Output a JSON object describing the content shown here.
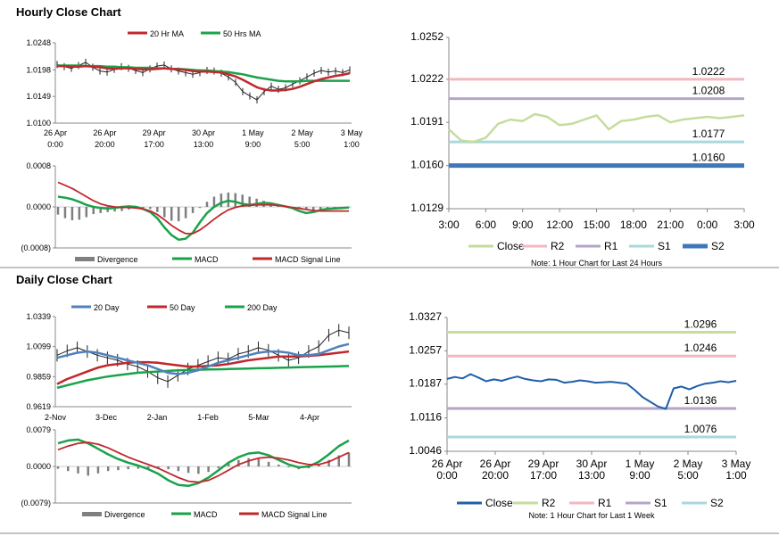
{
  "sections": {
    "hourly_title": "Hourly Close Chart",
    "daily_title": "Daily Close Chart"
  },
  "colors": {
    "ma20": "#c0282d",
    "ma50": "#1aa24a",
    "ma200": "#1aa24a",
    "ma20_daily": "#4f81bd",
    "price": "#222222",
    "divergence": "#7f7f7f",
    "macd": "#1aa24a",
    "signal": "#c0282d",
    "close": "#c5dd9c",
    "r2": "#f2b8bf",
    "r1": "#b3a5c8",
    "s1": "#a9d8dc",
    "s2": "#3f78b8",
    "close_daily": "#1f5fa8",
    "r2_daily": "#c5dd9c",
    "r1_daily": "#f2b8bf",
    "s1_daily": "#b3a5c8",
    "s2_daily": "#a9d8dc",
    "divider": "#888888"
  },
  "chart_data": [
    {
      "id": "hourly_price",
      "type": "line",
      "legend": [
        "20 Hr MA",
        "50 Hrs MA"
      ],
      "ylim": [
        1.01,
        1.0248
      ],
      "y_ticks": [
        "1.0248",
        "1.0198",
        "1.0149",
        "1.0100"
      ],
      "x_ticks": [
        [
          "26 Apr",
          "0:00"
        ],
        [
          "26 Apr",
          "20:00"
        ],
        [
          "29 Apr",
          "17:00"
        ],
        [
          "30 Apr",
          "13:00"
        ],
        [
          "1 May",
          "9:00"
        ],
        [
          "2 May",
          "5:00"
        ],
        [
          "3 May",
          "1:00"
        ]
      ],
      "series": [
        {
          "name": "Price",
          "values": [
            1.0208,
            1.0204,
            1.0201,
            1.0206,
            1.0212,
            1.0203,
            1.0196,
            1.0194,
            1.0199,
            1.0204,
            1.0201,
            1.0197,
            1.0193,
            1.02,
            1.0205,
            1.0207,
            1.02,
            1.0196,
            1.0193,
            1.019,
            1.0193,
            1.0197,
            1.0196,
            1.0192,
            1.0185,
            1.0175,
            1.0158,
            1.015,
            1.0143,
            1.0158,
            1.0168,
            1.0162,
            1.0165,
            1.0172,
            1.0178,
            1.0185,
            1.0192,
            1.0197,
            1.0194,
            1.0196,
            1.0193,
            1.0198
          ]
        },
        {
          "name": "20 Hr MA",
          "values": [
            1.0205,
            1.0205,
            1.0204,
            1.0204,
            1.0205,
            1.0204,
            1.0203,
            1.0201,
            1.02,
            1.0201,
            1.0201,
            1.02,
            1.0199,
            1.0199,
            1.02,
            1.0201,
            1.02,
            1.0199,
            1.0198,
            1.0196,
            1.0195,
            1.0195,
            1.0194,
            1.0193,
            1.019,
            1.0186,
            1.018,
            1.0173,
            1.0166,
            1.0162,
            1.016,
            1.016,
            1.0161,
            1.0163,
            1.0167,
            1.0172,
            1.0177,
            1.0181,
            1.0184,
            1.0187,
            1.0189,
            1.0192
          ]
        },
        {
          "name": "50 Hrs MA",
          "values": [
            1.0206,
            1.0206,
            1.0206,
            1.0206,
            1.0205,
            1.0205,
            1.0205,
            1.0204,
            1.0204,
            1.0203,
            1.0203,
            1.0202,
            1.0202,
            1.0202,
            1.0201,
            1.0201,
            1.02,
            1.02,
            1.0199,
            1.0198,
            1.0197,
            1.0197,
            1.0196,
            1.0195,
            1.0194,
            1.0192,
            1.019,
            1.0187,
            1.0184,
            1.0182,
            1.018,
            1.0178,
            1.0177,
            1.0177,
            1.0177,
            1.0178,
            1.0178,
            1.0178,
            1.0178,
            1.0178,
            1.0178,
            1.0178
          ]
        }
      ]
    },
    {
      "id": "hourly_macd",
      "type": "line",
      "legend": [
        "Divergence",
        "MACD",
        "MACD Signal Line"
      ],
      "ylim": [
        -0.0008,
        0.0008
      ],
      "y_ticks": [
        "0.0008",
        "0.0000",
        "(0.0008)"
      ],
      "series": [
        {
          "name": "Divergence",
          "values": [
            -0.00015,
            -0.00022,
            -0.00026,
            -0.00025,
            -0.0002,
            -0.00014,
            -0.00012,
            -0.0001,
            -9e-05,
            -8e-05,
            -5e-05,
            -3e-05,
            -2e-05,
            -4e-05,
            -0.0001,
            -0.0002,
            -0.00027,
            -0.00028,
            -0.00022,
            -0.00012,
            -2e-05,
            0.0001,
            0.0002,
            0.00026,
            0.00028,
            0.00027,
            0.00024,
            0.0002,
            0.00016,
            0.00012,
            8e-05,
            4e-05,
            1e-05,
            -1e-05,
            -3e-05,
            -5e-05,
            -6e-05,
            -5e-05,
            -4e-05,
            -3e-05,
            -2e-05,
            -1e-05
          ]
        },
        {
          "name": "MACD",
          "values": [
            0.0002,
            0.00018,
            0.00015,
            0.0001,
            4e-05,
            0.0,
            -2e-05,
            -3e-05,
            -2e-05,
            0.0,
            1e-05,
            0.0,
            -4e-05,
            -0.0001,
            -0.00022,
            -0.0004,
            -0.00055,
            -0.00064,
            -0.00062,
            -0.0005,
            -0.0003,
            -0.00012,
            0.0,
            8e-05,
            0.00012,
            0.0001,
            6e-05,
            4e-05,
            6e-05,
            8e-05,
            7e-05,
            4e-05,
            1e-05,
            -2e-05,
            -8e-05,
            -0.00012,
            -0.0001,
            -6e-05,
            -4e-05,
            -3e-05,
            -2e-05,
            -1e-05
          ]
        },
        {
          "name": "MACD Signal Line",
          "values": [
            0.00048,
            0.00042,
            0.00036,
            0.00028,
            0.0002,
            0.00012,
            6e-05,
            2e-05,
            0.0,
            -1e-05,
            -1e-05,
            -2e-05,
            -4e-05,
            -8e-05,
            -0.00015,
            -0.00025,
            -0.00036,
            -0.00045,
            -0.00052,
            -0.00052,
            -0.00045,
            -0.00035,
            -0.00024,
            -0.00014,
            -6e-05,
            -1e-05,
            2e-05,
            3e-05,
            4e-05,
            4e-05,
            4e-05,
            3e-05,
            1e-05,
            -1e-05,
            -3e-05,
            -5e-05,
            -7e-05,
            -8e-05,
            -8e-05,
            -8e-05,
            -8e-05,
            -8e-05
          ]
        }
      ]
    },
    {
      "id": "hourly_pivot",
      "type": "line",
      "ylim": [
        1.0129,
        1.0252
      ],
      "y_ticks": [
        "1.0252",
        "1.0222",
        "1.0191",
        "1.0160",
        "1.0129"
      ],
      "x_ticks": [
        "3:00",
        "6:00",
        "9:00",
        "12:00",
        "15:00",
        "18:00",
        "21:00",
        "0:00",
        "3:00"
      ],
      "levels": [
        {
          "name": "R2",
          "value": 1.0222,
          "label": "1.0222"
        },
        {
          "name": "R1",
          "value": 1.0208,
          "label": "1.0208"
        },
        {
          "name": "S1",
          "value": 1.0177,
          "label": "1.0177"
        },
        {
          "name": "S2",
          "value": 1.016,
          "label": "1.0160"
        }
      ],
      "series": [
        {
          "name": "Close",
          "values": [
            1.0186,
            1.0178,
            1.0177,
            1.018,
            1.019,
            1.0193,
            1.0192,
            1.0197,
            1.0195,
            1.0189,
            1.019,
            1.0193,
            1.0196,
            1.0186,
            1.0192,
            1.0193,
            1.0195,
            1.0196,
            1.0191,
            1.0193,
            1.0194,
            1.0195,
            1.0194,
            1.0195,
            1.0196
          ]
        }
      ],
      "legend": [
        "Close",
        "R2",
        "R1",
        "S1",
        "S2"
      ],
      "note": "Note: 1 Hour Chart for Last 24 Hours"
    },
    {
      "id": "daily_price",
      "type": "line",
      "legend": [
        "20 Day",
        "50 Day",
        "200 Day"
      ],
      "ylim": [
        0.9619,
        1.0339
      ],
      "y_ticks": [
        "1.0339",
        "1.0099",
        "0.9859",
        "0.9619"
      ],
      "x_ticks": [
        "2-Nov",
        "3-Dec",
        "2-Jan",
        "1-Feb",
        "5-Mar",
        "4-Apr"
      ],
      "series": [
        {
          "name": "Price",
          "values": [
            1.003,
            1.0065,
            1.009,
            1.006,
            1.003,
            1.001,
            0.999,
            0.996,
            0.994,
            0.99,
            0.985,
            0.982,
            0.987,
            0.992,
            0.995,
            0.998,
            1.001,
            1.0,
            1.004,
            1.006,
            1.009,
            1.007,
            1.003,
            0.999,
            1.001,
            1.006,
            1.01,
            1.019,
            1.023,
            1.021
          ]
        },
        {
          "name": "20 Day",
          "values": [
            1.001,
            1.003,
            1.005,
            1.006,
            1.005,
            1.003,
            1.001,
            0.999,
            0.997,
            0.995,
            0.992,
            0.989,
            0.988,
            0.989,
            0.991,
            0.994,
            0.997,
            0.999,
            1.001,
            1.003,
            1.005,
            1.006,
            1.006,
            1.005,
            1.003,
            1.003,
            1.004,
            1.007,
            1.01,
            1.012
          ]
        },
        {
          "name": "50 Day",
          "values": [
            0.98,
            0.984,
            0.987,
            0.99,
            0.993,
            0.995,
            0.996,
            0.997,
            0.9975,
            0.9975,
            0.997,
            0.996,
            0.995,
            0.994,
            0.994,
            0.9945,
            0.995,
            0.996,
            0.9975,
            0.999,
            1.0,
            1.001,
            1.002,
            1.002,
            1.002,
            1.0025,
            1.003,
            1.004,
            1.005,
            1.006
          ]
        },
        {
          "name": "200 Day",
          "values": [
            0.977,
            0.979,
            0.981,
            0.983,
            0.9845,
            0.986,
            0.987,
            0.988,
            0.989,
            0.9895,
            0.99,
            0.9905,
            0.991,
            0.9912,
            0.9914,
            0.9916,
            0.9918,
            0.992,
            0.9922,
            0.9924,
            0.9926,
            0.9928,
            0.993,
            0.9932,
            0.9934,
            0.9936,
            0.9938,
            0.994,
            0.9942,
            0.9944
          ]
        }
      ]
    },
    {
      "id": "daily_macd",
      "type": "line",
      "legend": [
        "Divergence",
        "MACD",
        "MACD Signal Line"
      ],
      "ylim": [
        -0.0079,
        0.0079
      ],
      "y_ticks": [
        "0.0079",
        "0.0000",
        "(0.0079)"
      ],
      "series": [
        {
          "name": "Divergence",
          "values": [
            -0.0005,
            -0.001,
            -0.0015,
            -0.002,
            -0.0015,
            -0.001,
            -0.0008,
            -0.0006,
            -0.0005,
            -0.0004,
            -0.0004,
            -0.0006,
            -0.001,
            -0.0014,
            -0.0016,
            -0.0012,
            -0.0004,
            0.0006,
            0.0014,
            0.0018,
            0.0016,
            0.001,
            0.0004,
            -0.0002,
            -0.0006,
            -0.0004,
            0.0004,
            0.0014,
            0.0024,
            0.003
          ]
        },
        {
          "name": "MACD",
          "values": [
            0.005,
            0.0056,
            0.0058,
            0.005,
            0.0038,
            0.0026,
            0.0016,
            0.0008,
            0.0002,
            -0.0006,
            -0.0016,
            -0.003,
            -0.004,
            -0.0042,
            -0.0036,
            -0.0024,
            -0.0008,
            0.0008,
            0.002,
            0.0028,
            0.003,
            0.0024,
            0.0014,
            0.0004,
            -0.0002,
            0.0,
            0.001,
            0.0026,
            0.0044,
            0.0056
          ]
        },
        {
          "name": "MACD Signal Line",
          "values": [
            0.0036,
            0.0044,
            0.005,
            0.0052,
            0.0048,
            0.004,
            0.003,
            0.002,
            0.0012,
            0.0004,
            -0.0004,
            -0.0014,
            -0.0024,
            -0.0032,
            -0.0034,
            -0.003,
            -0.002,
            -0.0008,
            0.0004,
            0.0012,
            0.0018,
            0.002,
            0.0018,
            0.0014,
            0.0008,
            0.0004,
            0.0004,
            0.001,
            0.002,
            0.003
          ]
        }
      ]
    },
    {
      "id": "daily_pivot",
      "type": "line",
      "ylim": [
        1.0046,
        1.0327
      ],
      "y_ticks": [
        "1.0327",
        "1.0257",
        "1.0187",
        "1.0116",
        "1.0046"
      ],
      "x_ticks": [
        [
          "26 Apr",
          "0:00"
        ],
        [
          "26 Apr",
          "20:00"
        ],
        [
          "29 Apr",
          "17:00"
        ],
        [
          "30 Apr",
          "13:00"
        ],
        [
          "1 May",
          "9:00"
        ],
        [
          "2 May",
          "5:00"
        ],
        [
          "3 May",
          "1:00"
        ]
      ],
      "levels": [
        {
          "name": "R2",
          "value": 1.0296,
          "label": "1.0296"
        },
        {
          "name": "R1",
          "value": 1.0246,
          "label": "1.0246"
        },
        {
          "name": "S1",
          "value": 1.0136,
          "label": "1.0136"
        },
        {
          "name": "S2",
          "value": 1.0076,
          "label": "1.0076"
        }
      ],
      "series": [
        {
          "name": "Close",
          "values": [
            1.0198,
            1.0202,
            1.0199,
            1.0208,
            1.0201,
            1.0193,
            1.0197,
            1.0194,
            1.0199,
            1.0203,
            1.0198,
            1.0195,
            1.0193,
            1.0197,
            1.0196,
            1.019,
            1.0192,
            1.0195,
            1.0193,
            1.019,
            1.0191,
            1.0192,
            1.019,
            1.0188,
            1.0175,
            1.016,
            1.015,
            1.014,
            1.0135,
            1.0178,
            1.0182,
            1.0176,
            1.0183,
            1.0188,
            1.019,
            1.0193,
            1.0191,
            1.0194
          ]
        }
      ],
      "legend": [
        "Close",
        "R2",
        "R1",
        "S1",
        "S2"
      ],
      "note": "Note: 1 Hour Chart for Last 1 Week"
    }
  ]
}
